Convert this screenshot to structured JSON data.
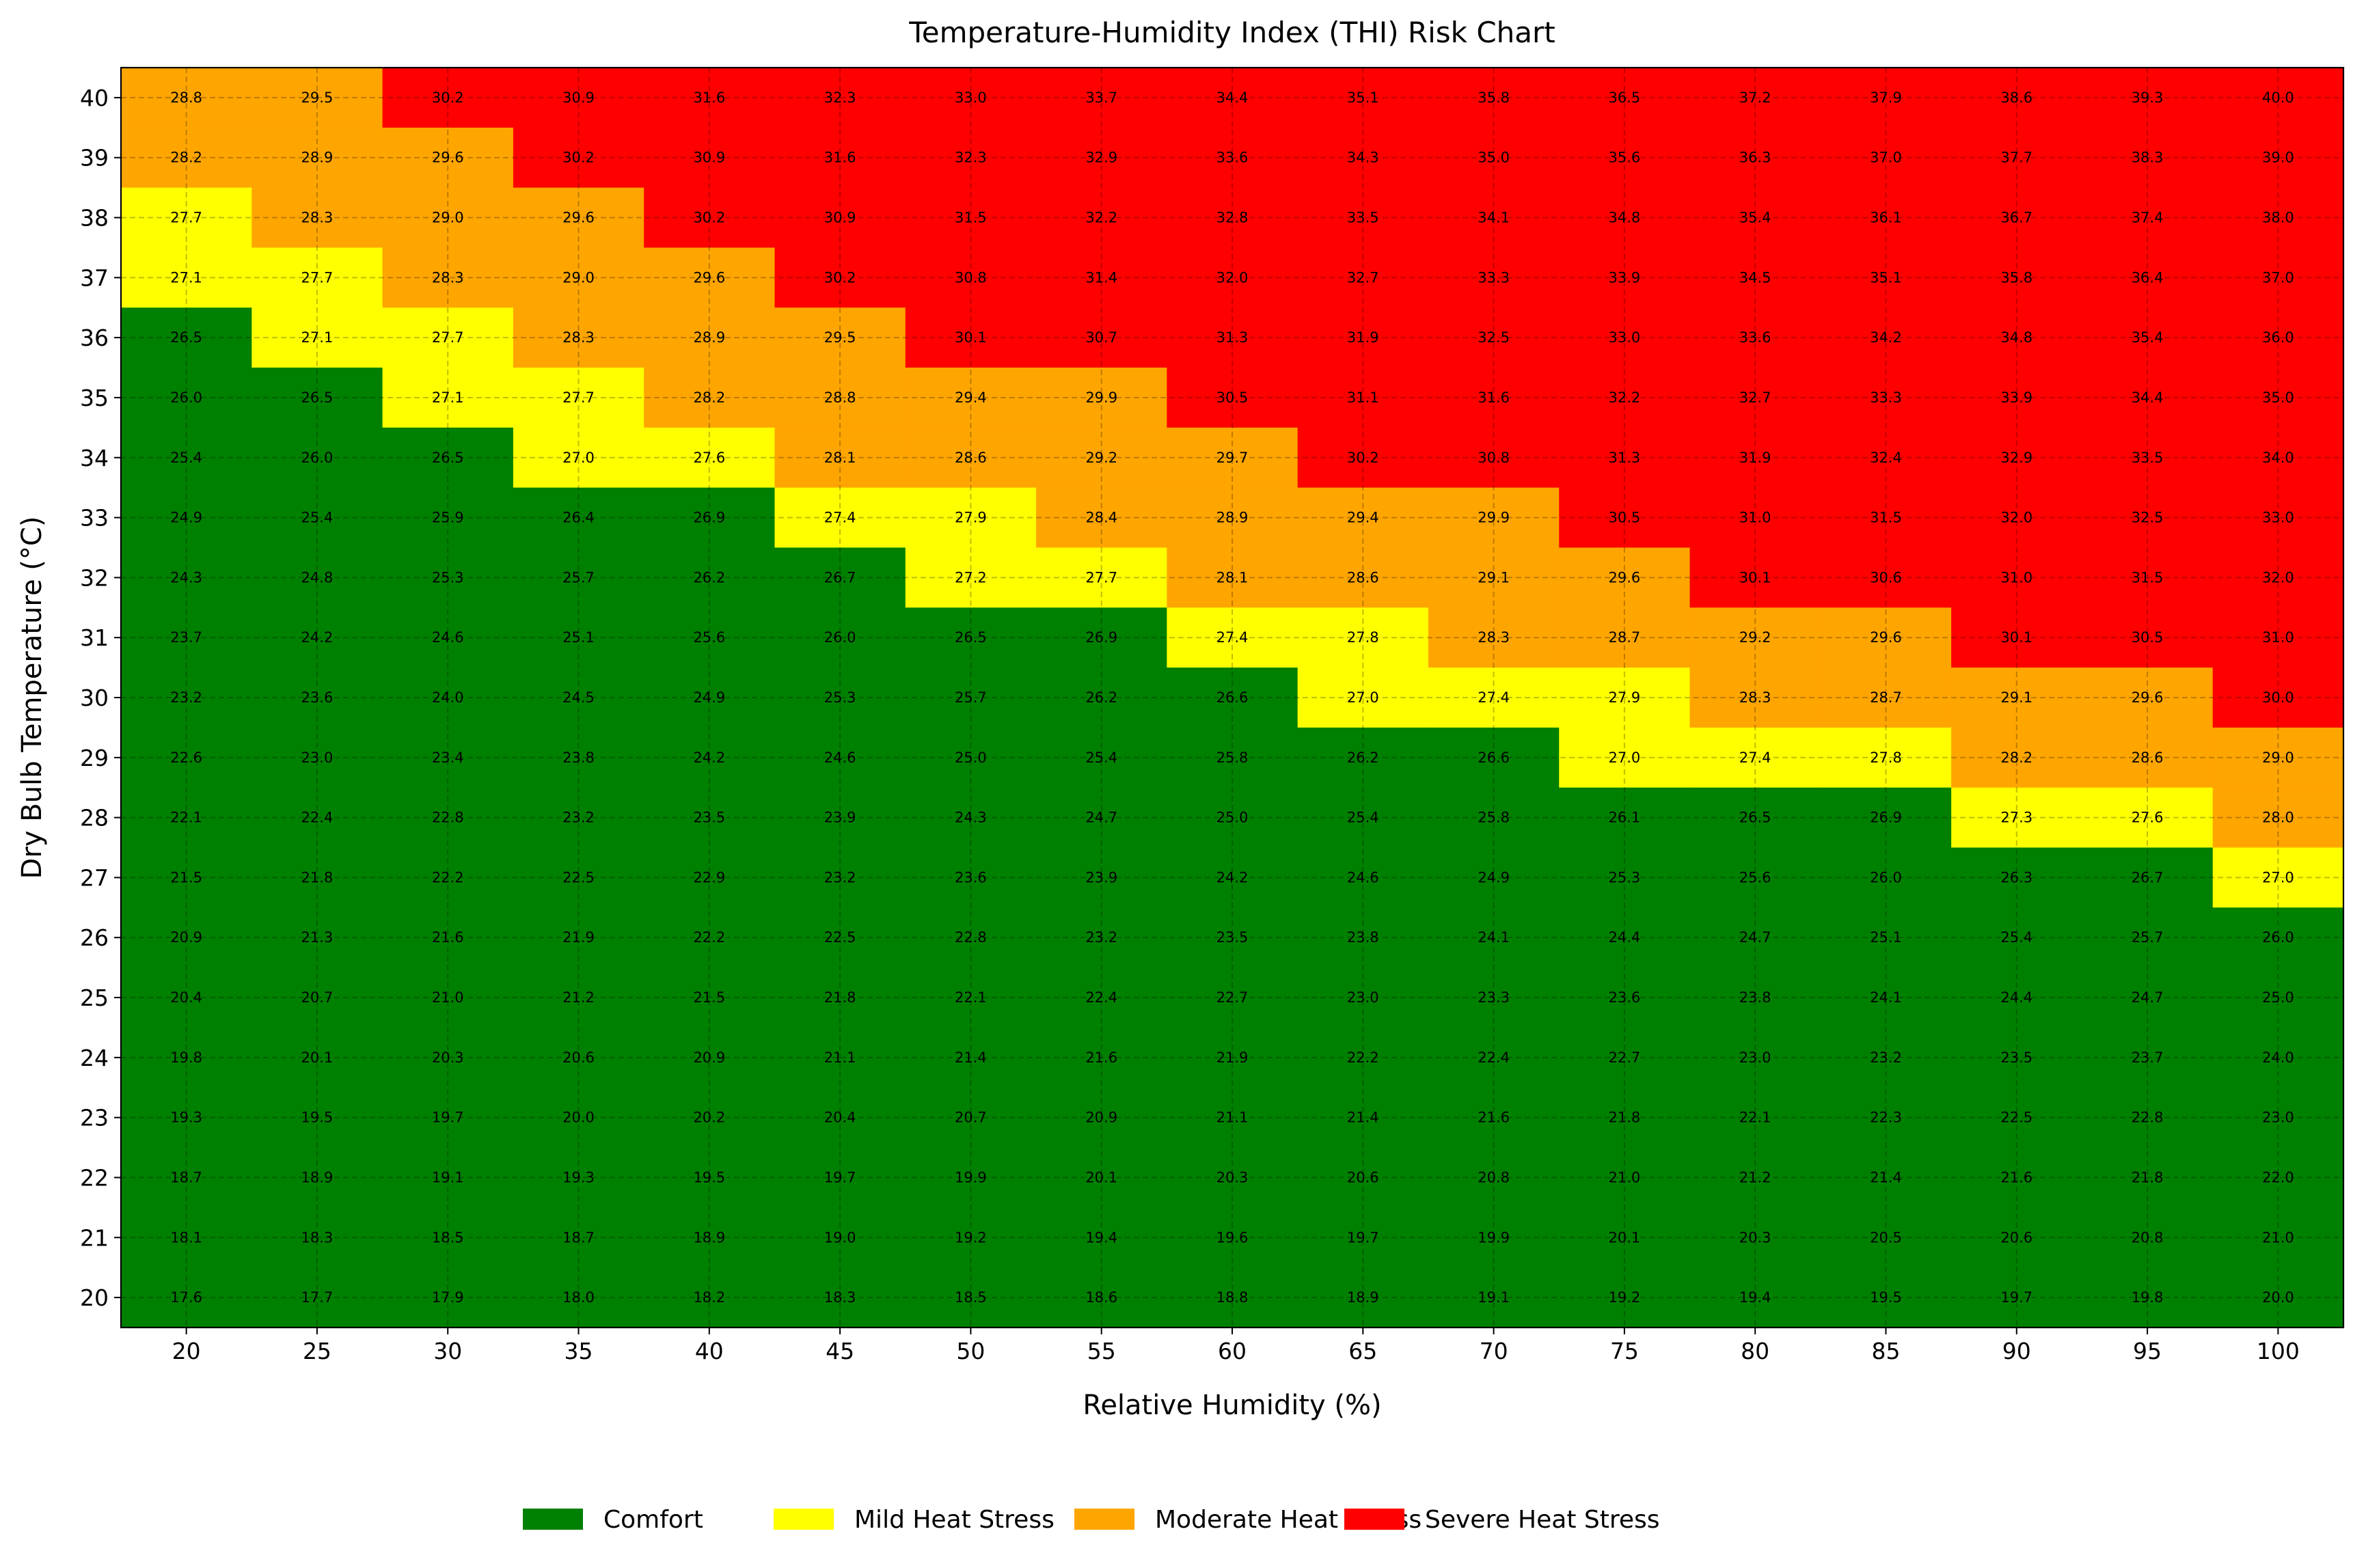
{
  "chart_data": {
    "type": "heatmap",
    "title": "Temperature-Humidity Index (THI) Risk Chart",
    "xlabel": "Relative Humidity (%)",
    "ylabel": "Dry Bulb Temperature (°C)",
    "x": [
      20,
      25,
      30,
      35,
      40,
      45,
      50,
      55,
      60,
      65,
      70,
      75,
      80,
      85,
      90,
      95,
      100
    ],
    "y": [
      40,
      39,
      38,
      37,
      36,
      35,
      34,
      33,
      32,
      31,
      30,
      29,
      28,
      27,
      26,
      25,
      24,
      23,
      22,
      21,
      20
    ],
    "values": [
      [
        28.8,
        29.5,
        30.2,
        30.9,
        31.6,
        32.3,
        33.0,
        33.7,
        34.4,
        35.1,
        35.8,
        36.5,
        37.2,
        37.9,
        38.6,
        39.3,
        40.0
      ],
      [
        28.2,
        28.9,
        29.6,
        30.2,
        30.9,
        31.6,
        32.3,
        32.9,
        33.6,
        34.3,
        35.0,
        35.6,
        36.3,
        37.0,
        37.7,
        38.3,
        39.0
      ],
      [
        27.7,
        28.3,
        29.0,
        29.6,
        30.2,
        30.9,
        31.5,
        32.2,
        32.8,
        33.5,
        34.1,
        34.8,
        35.4,
        36.1,
        36.7,
        37.4,
        38.0
      ],
      [
        27.1,
        27.7,
        28.3,
        29.0,
        29.6,
        30.2,
        30.8,
        31.4,
        32.0,
        32.7,
        33.3,
        33.9,
        34.5,
        35.1,
        35.8,
        36.4,
        37.0
      ],
      [
        26.5,
        27.1,
        27.7,
        28.3,
        28.9,
        29.5,
        30.1,
        30.7,
        31.3,
        31.9,
        32.5,
        33.0,
        33.6,
        34.2,
        34.8,
        35.4,
        36.0
      ],
      [
        26.0,
        26.5,
        27.1,
        27.7,
        28.2,
        28.8,
        29.4,
        29.9,
        30.5,
        31.1,
        31.6,
        32.2,
        32.7,
        33.3,
        33.9,
        34.4,
        35.0
      ],
      [
        25.4,
        26.0,
        26.5,
        27.0,
        27.6,
        28.1,
        28.6,
        29.2,
        29.7,
        30.2,
        30.8,
        31.3,
        31.9,
        32.4,
        32.9,
        33.5,
        34.0
      ],
      [
        24.9,
        25.4,
        25.9,
        26.4,
        26.9,
        27.4,
        27.9,
        28.4,
        28.9,
        29.4,
        29.9,
        30.5,
        31.0,
        31.5,
        32.0,
        32.5,
        33.0
      ],
      [
        24.3,
        24.8,
        25.3,
        25.7,
        26.2,
        26.7,
        27.2,
        27.7,
        28.1,
        28.6,
        29.1,
        29.6,
        30.1,
        30.6,
        31.0,
        31.5,
        32.0
      ],
      [
        23.7,
        24.2,
        24.6,
        25.1,
        25.6,
        26.0,
        26.5,
        26.9,
        27.4,
        27.8,
        28.3,
        28.7,
        29.2,
        29.6,
        30.1,
        30.5,
        31.0
      ],
      [
        23.2,
        23.6,
        24.0,
        24.5,
        24.9,
        25.3,
        25.7,
        26.2,
        26.6,
        27.0,
        27.4,
        27.9,
        28.3,
        28.7,
        29.1,
        29.6,
        30.0
      ],
      [
        22.6,
        23.0,
        23.4,
        23.8,
        24.2,
        24.6,
        25.0,
        25.4,
        25.8,
        26.2,
        26.6,
        27.0,
        27.4,
        27.8,
        28.2,
        28.6,
        29.0
      ],
      [
        22.1,
        22.4,
        22.8,
        23.2,
        23.5,
        23.9,
        24.3,
        24.7,
        25.0,
        25.4,
        25.8,
        26.1,
        26.5,
        26.9,
        27.3,
        27.6,
        28.0
      ],
      [
        21.5,
        21.8,
        22.2,
        22.5,
        22.9,
        23.2,
        23.6,
        23.9,
        24.2,
        24.6,
        24.9,
        25.3,
        25.6,
        26.0,
        26.3,
        26.7,
        27.0
      ],
      [
        20.9,
        21.3,
        21.6,
        21.9,
        22.2,
        22.5,
        22.8,
        23.2,
        23.5,
        23.8,
        24.1,
        24.4,
        24.7,
        25.1,
        25.4,
        25.7,
        26.0
      ],
      [
        20.4,
        20.7,
        21.0,
        21.2,
        21.5,
        21.8,
        22.1,
        22.4,
        22.7,
        23.0,
        23.3,
        23.6,
        23.8,
        24.1,
        24.4,
        24.7,
        25.0
      ],
      [
        19.8,
        20.1,
        20.3,
        20.6,
        20.9,
        21.1,
        21.4,
        21.6,
        21.9,
        22.2,
        22.4,
        22.7,
        23.0,
        23.2,
        23.5,
        23.7,
        24.0
      ],
      [
        19.3,
        19.5,
        19.7,
        20.0,
        20.2,
        20.4,
        20.7,
        20.9,
        21.1,
        21.4,
        21.6,
        21.8,
        22.1,
        22.3,
        22.5,
        22.8,
        23.0
      ],
      [
        18.7,
        18.9,
        19.1,
        19.3,
        19.5,
        19.7,
        19.9,
        20.1,
        20.3,
        20.6,
        20.8,
        21.0,
        21.2,
        21.4,
        21.6,
        21.8,
        22.0
      ],
      [
        18.1,
        18.3,
        18.5,
        18.7,
        18.9,
        19.0,
        19.2,
        19.4,
        19.6,
        19.7,
        19.9,
        20.1,
        20.3,
        20.5,
        20.6,
        20.8,
        21.0
      ],
      [
        17.6,
        17.7,
        17.9,
        18.0,
        18.2,
        18.3,
        18.5,
        18.6,
        18.8,
        18.9,
        19.1,
        19.2,
        19.4,
        19.5,
        19.7,
        19.8,
        20.0
      ]
    ],
    "categories": [
      {
        "name": "Comfort",
        "color": "#008000",
        "min": null,
        "max": 27
      },
      {
        "name": "Mild Heat Stress",
        "color": "#ffff00",
        "min": 27,
        "max": 28
      },
      {
        "name": "Moderate Heat Stress",
        "color": "#ffa500",
        "min": 28,
        "max": 30
      },
      {
        "name": "Severe Heat Stress",
        "color": "#ff0000",
        "min": 30,
        "max": null
      }
    ],
    "grid": true,
    "legend_position": "bottom"
  }
}
